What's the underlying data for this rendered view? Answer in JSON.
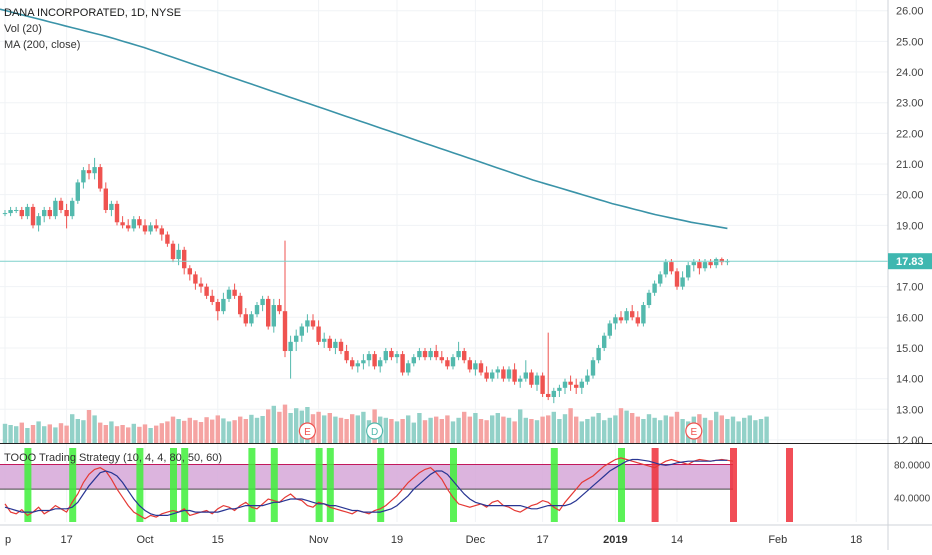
{
  "header": {
    "title": "DANA INCORPORATED, 1D, NYSE",
    "volume_label": "Vol (20)",
    "ma_label": "MA (200, close)",
    "oscillator_label": "TOOO Trading Strategy (10, 4, 4, 80, 50, 60)",
    "last_price": "17.83"
  },
  "colors": {
    "up": "#53b9ad",
    "down": "#ef5350",
    "vol_up": "#92d1c8",
    "vol_down": "#f5a3a2",
    "ma": "#3a93a8",
    "price_line": "#7fd1cc",
    "price_badge": "#3fb7b0",
    "band": "#d6a7d8",
    "band_line": "#c2185b",
    "stoch_k": "#e53935",
    "stoch_d": "#283593",
    "signal_buy": "#3ef03a",
    "signal_sell": "#ef2f3a",
    "earnings_marker": "#ef5350",
    "dividend_marker": "#53b9ad"
  },
  "chart_data": {
    "type": "candlestick",
    "title": "DANA INCORPORATED, 1D, NYSE",
    "price_axis": {
      "ylim": [
        11.9,
        26.35
      ],
      "ticks": [
        "26.00",
        "25.00",
        "24.00",
        "23.00",
        "22.00",
        "21.00",
        "20.00",
        "19.00",
        "17.00",
        "16.00",
        "15.00",
        "14.00",
        "13.00",
        "12.00"
      ],
      "current_price": 17.83
    },
    "time_axis": {
      "index_range": [
        0,
        148
      ],
      "ticks": [
        {
          "index": 0,
          "label": "p"
        },
        {
          "index": 11,
          "label": "17"
        },
        {
          "index": 25,
          "label": "Oct"
        },
        {
          "index": 38,
          "label": "15"
        },
        {
          "index": 56,
          "label": "Nov"
        },
        {
          "index": 70,
          "label": "19"
        },
        {
          "index": 84,
          "label": "Dec"
        },
        {
          "index": 96,
          "label": "17"
        },
        {
          "index": 109,
          "label": "2019"
        },
        {
          "index": 120,
          "label": "14"
        },
        {
          "index": 138,
          "label": "Feb"
        },
        {
          "index": 152,
          "label": "18"
        }
      ]
    },
    "ohlc": [
      [
        19.4,
        19.5,
        19.3,
        19.4
      ],
      [
        19.4,
        19.6,
        19.3,
        19.5
      ],
      [
        19.5,
        19.6,
        19.4,
        19.5
      ],
      [
        19.5,
        19.6,
        19.2,
        19.3
      ],
      [
        19.3,
        19.7,
        19.2,
        19.6
      ],
      [
        19.6,
        19.7,
        18.9,
        19.0
      ],
      [
        19.0,
        19.4,
        18.8,
        19.3
      ],
      [
        19.3,
        19.6,
        19.1,
        19.5
      ],
      [
        19.5,
        19.6,
        19.2,
        19.3
      ],
      [
        19.3,
        19.9,
        19.2,
        19.8
      ],
      [
        19.8,
        19.9,
        19.4,
        19.5
      ],
      [
        19.5,
        19.7,
        18.9,
        19.3
      ],
      [
        19.3,
        19.9,
        19.2,
        19.8
      ],
      [
        19.8,
        20.5,
        19.7,
        20.4
      ],
      [
        20.4,
        20.9,
        20.2,
        20.8
      ],
      [
        20.8,
        21.0,
        20.5,
        20.7
      ],
      [
        20.7,
        21.2,
        20.5,
        20.9
      ],
      [
        20.9,
        21.0,
        20.1,
        20.2
      ],
      [
        20.2,
        20.4,
        19.4,
        19.5
      ],
      [
        19.5,
        19.8,
        19.3,
        19.7
      ],
      [
        19.7,
        19.8,
        19.0,
        19.1
      ],
      [
        19.1,
        19.3,
        18.9,
        19.0
      ],
      [
        19.0,
        19.2,
        18.8,
        18.9
      ],
      [
        18.9,
        19.3,
        18.8,
        19.2
      ],
      [
        19.2,
        19.3,
        18.9,
        19.0
      ],
      [
        19.0,
        19.2,
        18.7,
        18.8
      ],
      [
        18.8,
        19.1,
        18.7,
        19.0
      ],
      [
        19.0,
        19.2,
        18.8,
        18.9
      ],
      [
        18.9,
        19.0,
        18.5,
        18.7
      ],
      [
        18.7,
        18.8,
        18.3,
        18.4
      ],
      [
        18.4,
        18.5,
        17.8,
        17.9
      ],
      [
        17.9,
        18.4,
        17.7,
        18.2
      ],
      [
        18.2,
        18.3,
        17.4,
        17.6
      ],
      [
        17.6,
        17.7,
        17.2,
        17.4
      ],
      [
        17.4,
        17.5,
        16.9,
        17.1
      ],
      [
        17.1,
        17.3,
        16.8,
        17.0
      ],
      [
        17.0,
        17.1,
        16.6,
        16.7
      ],
      [
        16.7,
        16.9,
        16.4,
        16.5
      ],
      [
        16.5,
        16.6,
        15.9,
        16.2
      ],
      [
        16.2,
        16.8,
        16.1,
        16.6
      ],
      [
        16.6,
        17.0,
        16.5,
        16.9
      ],
      [
        16.9,
        17.1,
        16.6,
        16.7
      ],
      [
        16.7,
        16.8,
        16.0,
        16.1
      ],
      [
        16.1,
        16.3,
        15.7,
        15.8
      ],
      [
        15.8,
        16.2,
        15.7,
        16.1
      ],
      [
        16.1,
        16.5,
        16.0,
        16.4
      ],
      [
        16.4,
        16.7,
        16.2,
        16.6
      ],
      [
        16.6,
        16.7,
        15.6,
        15.7
      ],
      [
        15.7,
        16.6,
        15.5,
        16.4
      ],
      [
        16.4,
        16.6,
        16.1,
        16.2
      ],
      [
        16.2,
        18.5,
        14.7,
        14.9
      ],
      [
        14.9,
        15.4,
        14.0,
        15.2
      ],
      [
        15.2,
        15.6,
        14.9,
        15.4
      ],
      [
        15.4,
        15.8,
        15.2,
        15.7
      ],
      [
        15.7,
        16.1,
        15.5,
        15.9
      ],
      [
        15.9,
        16.1,
        15.6,
        15.7
      ],
      [
        15.7,
        15.9,
        15.1,
        15.2
      ],
      [
        15.2,
        15.5,
        15.0,
        15.3
      ],
      [
        15.3,
        15.4,
        14.9,
        15.0
      ],
      [
        15.0,
        15.3,
        14.8,
        15.2
      ],
      [
        15.2,
        15.3,
        14.8,
        14.9
      ],
      [
        14.9,
        15.1,
        14.5,
        14.6
      ],
      [
        14.6,
        14.7,
        14.3,
        14.4
      ],
      [
        14.4,
        14.6,
        14.2,
        14.5
      ],
      [
        14.5,
        14.8,
        14.3,
        14.6
      ],
      [
        14.6,
        14.9,
        14.4,
        14.8
      ],
      [
        14.8,
        14.9,
        14.3,
        14.4
      ],
      [
        14.4,
        14.7,
        14.2,
        14.6
      ],
      [
        14.6,
        15.0,
        14.5,
        14.9
      ],
      [
        14.9,
        15.0,
        14.6,
        14.7
      ],
      [
        14.7,
        14.9,
        14.5,
        14.8
      ],
      [
        14.8,
        14.9,
        14.1,
        14.2
      ],
      [
        14.2,
        14.6,
        14.1,
        14.5
      ],
      [
        14.5,
        14.8,
        14.4,
        14.7
      ],
      [
        14.7,
        15.0,
        14.6,
        14.9
      ],
      [
        14.9,
        15.0,
        14.6,
        14.7
      ],
      [
        14.7,
        15.0,
        14.6,
        14.9
      ],
      [
        14.9,
        15.1,
        14.6,
        14.7
      ],
      [
        14.7,
        14.9,
        14.5,
        14.6
      ],
      [
        14.6,
        14.7,
        14.3,
        14.4
      ],
      [
        14.4,
        14.8,
        14.3,
        14.7
      ],
      [
        14.7,
        15.2,
        14.6,
        14.9
      ],
      [
        14.9,
        15.0,
        14.5,
        14.6
      ],
      [
        14.6,
        14.7,
        14.2,
        14.3
      ],
      [
        14.3,
        14.6,
        14.1,
        14.5
      ],
      [
        14.5,
        14.6,
        14.1,
        14.2
      ],
      [
        14.2,
        14.4,
        13.9,
        14.0
      ],
      [
        14.0,
        14.3,
        13.9,
        14.2
      ],
      [
        14.2,
        14.4,
        14.0,
        14.3
      ],
      [
        14.3,
        14.4,
        13.9,
        14.0
      ],
      [
        14.0,
        14.4,
        13.9,
        14.3
      ],
      [
        14.3,
        14.5,
        13.8,
        13.9
      ],
      [
        13.9,
        14.1,
        13.7,
        14.0
      ],
      [
        14.0,
        14.6,
        13.9,
        14.2
      ],
      [
        14.2,
        14.3,
        13.7,
        13.8
      ],
      [
        13.8,
        14.2,
        13.6,
        14.1
      ],
      [
        14.1,
        14.2,
        13.4,
        13.5
      ],
      [
        13.5,
        15.5,
        13.3,
        13.4
      ],
      [
        13.4,
        13.7,
        13.2,
        13.6
      ],
      [
        13.6,
        13.8,
        13.4,
        13.7
      ],
      [
        13.7,
        14.0,
        13.5,
        13.9
      ],
      [
        13.9,
        14.1,
        13.6,
        13.8
      ],
      [
        13.8,
        14.0,
        13.5,
        13.7
      ],
      [
        13.7,
        14.0,
        13.5,
        13.9
      ],
      [
        13.9,
        14.3,
        13.8,
        14.1
      ],
      [
        14.1,
        14.7,
        14.0,
        14.6
      ],
      [
        14.6,
        15.1,
        14.5,
        15.0
      ],
      [
        15.0,
        15.5,
        14.9,
        15.4
      ],
      [
        15.4,
        15.9,
        15.3,
        15.8
      ],
      [
        15.8,
        16.1,
        15.6,
        16.0
      ],
      [
        16.0,
        16.2,
        15.8,
        15.9
      ],
      [
        15.9,
        16.3,
        15.8,
        16.2
      ],
      [
        16.2,
        16.4,
        15.9,
        16.0
      ],
      [
        16.0,
        16.2,
        15.7,
        15.8
      ],
      [
        15.8,
        16.5,
        15.7,
        16.4
      ],
      [
        16.4,
        16.9,
        16.3,
        16.8
      ],
      [
        16.8,
        17.2,
        16.7,
        17.1
      ],
      [
        17.1,
        17.5,
        17.0,
        17.4
      ],
      [
        17.4,
        17.9,
        17.3,
        17.8
      ],
      [
        17.8,
        17.9,
        17.4,
        17.5
      ],
      [
        17.5,
        17.6,
        16.9,
        17.0
      ],
      [
        17.0,
        17.5,
        16.9,
        17.3
      ],
      [
        17.3,
        17.8,
        17.2,
        17.7
      ],
      [
        17.7,
        17.9,
        17.5,
        17.8
      ],
      [
        17.8,
        17.9,
        17.4,
        17.6
      ],
      [
        17.6,
        17.9,
        17.5,
        17.8
      ],
      [
        17.8,
        17.9,
        17.6,
        17.7
      ],
      [
        17.7,
        17.95,
        17.6,
        17.9
      ],
      [
        17.9,
        17.95,
        17.7,
        17.8
      ],
      [
        17.8,
        17.9,
        17.7,
        17.83
      ]
    ],
    "volume": {
      "ylim": [
        0,
        100
      ],
      "values": [
        32,
        30,
        28,
        34,
        25,
        30,
        36,
        28,
        31,
        26,
        33,
        29,
        48,
        40,
        38,
        55,
        46,
        34,
        30,
        36,
        28,
        30,
        26,
        32,
        27,
        31,
        25,
        29,
        33,
        36,
        44,
        40,
        37,
        42,
        38,
        35,
        43,
        39,
        46,
        41,
        36,
        38,
        44,
        40,
        47,
        42,
        45,
        56,
        62,
        52,
        64,
        50,
        58,
        54,
        60,
        48,
        52,
        46,
        50,
        44,
        42,
        40,
        48,
        46,
        52,
        38,
        56,
        44,
        42,
        40,
        36,
        40,
        46,
        34,
        50,
        38,
        42,
        44,
        40,
        46,
        36,
        42,
        52,
        44,
        50,
        40,
        38,
        46,
        50,
        44,
        42,
        36,
        56,
        42,
        40,
        38,
        44,
        46,
        52,
        40,
        48,
        58,
        44,
        36,
        40,
        44,
        50,
        38,
        42,
        46,
        58,
        54,
        50,
        44,
        40,
        48,
        42,
        38,
        46,
        44,
        52,
        40,
        36,
        44,
        48,
        42,
        38,
        52,
        46,
        40,
        44,
        36,
        42,
        46,
        38,
        40,
        44
      ]
    },
    "moving_average": {
      "name": "MA (200, close)",
      "values": [
        26.05,
        25.99,
        25.93,
        25.87,
        25.81,
        25.75,
        25.69,
        25.63,
        25.57,
        25.51,
        25.45,
        25.39,
        25.33,
        25.27,
        25.21,
        25.15,
        25.08,
        25.01,
        24.94,
        24.87,
        24.8,
        24.72,
        24.64,
        24.56,
        24.48,
        24.4,
        24.32,
        24.24,
        24.16,
        24.08,
        24.0,
        23.92,
        23.84,
        23.76,
        23.68,
        23.6,
        23.52,
        23.44,
        23.36,
        23.28,
        23.2,
        23.12,
        23.04,
        22.96,
        22.88,
        22.8,
        22.72,
        22.64,
        22.56,
        22.48,
        22.4,
        22.32,
        22.24,
        22.16,
        22.08,
        22.0,
        21.92,
        21.84,
        21.76,
        21.68,
        21.6,
        21.52,
        21.44,
        21.36,
        21.28,
        21.2,
        21.12,
        21.04,
        20.96,
        20.88,
        20.8,
        20.72,
        20.64,
        20.56,
        20.48,
        20.41,
        20.34,
        20.27,
        20.2,
        20.13,
        20.06,
        19.99,
        19.92,
        19.85,
        19.78,
        19.71,
        19.65,
        19.59,
        19.53,
        19.47,
        19.41,
        19.35,
        19.3,
        19.25,
        19.2,
        19.15,
        19.1,
        19.06,
        19.02,
        18.98,
        18.94,
        18.9
      ]
    },
    "earnings_markers": [
      {
        "index": 54,
        "label": "E"
      },
      {
        "index": 123,
        "label": "E"
      }
    ],
    "dividend_markers": [
      {
        "index": 66,
        "label": "D"
      }
    ],
    "oscillator": {
      "name": "TOOO Trading Strategy (10, 4, 4, 80, 50, 60)",
      "ylim": [
        10,
        100
      ],
      "ticks": [
        "80.0000",
        "40.0000"
      ],
      "upper_band": 80,
      "lower_band": 50,
      "k_values": [
        32,
        22,
        20,
        25,
        18,
        22,
        28,
        20,
        24,
        30,
        26,
        22,
        34,
        44,
        58,
        68,
        74,
        76,
        72,
        62,
        50,
        40,
        30,
        22,
        18,
        14,
        18,
        16,
        20,
        22,
        24,
        22,
        26,
        18,
        20,
        22,
        24,
        20,
        26,
        30,
        28,
        24,
        30,
        34,
        28,
        26,
        32,
        38,
        36,
        34,
        40,
        44,
        38,
        36,
        30,
        28,
        34,
        32,
        28,
        26,
        24,
        22,
        20,
        24,
        22,
        20,
        24,
        26,
        30,
        36,
        42,
        50,
        58,
        64,
        70,
        74,
        76,
        70,
        62,
        50,
        40,
        32,
        30,
        28,
        30,
        32,
        28,
        34,
        36,
        30,
        28,
        24,
        22,
        26,
        30,
        32,
        36,
        34,
        28,
        24,
        34,
        42,
        50,
        58,
        62,
        66,
        72,
        78,
        82,
        86,
        88,
        86,
        84,
        82,
        80,
        78,
        76,
        80,
        84,
        86,
        84,
        82,
        80,
        84,
        86,
        85,
        84,
        85,
        86,
        85,
        84
      ]
    },
    "oscillator_d": {
      "values": [
        28,
        26,
        24,
        22,
        22,
        22,
        24,
        24,
        24,
        26,
        26,
        26,
        28,
        34,
        44,
        54,
        62,
        70,
        72,
        70,
        66,
        58,
        48,
        38,
        30,
        24,
        20,
        18,
        18,
        18,
        20,
        22,
        24,
        24,
        22,
        22,
        22,
        22,
        22,
        24,
        26,
        26,
        28,
        30,
        30,
        30,
        30,
        32,
        34,
        34,
        36,
        38,
        38,
        38,
        36,
        34,
        32,
        32,
        30,
        30,
        28,
        26,
        24,
        24,
        22,
        22,
        22,
        22,
        24,
        26,
        30,
        36,
        42,
        50,
        56,
        62,
        68,
        72,
        72,
        68,
        60,
        52,
        44,
        38,
        34,
        32,
        30,
        30,
        30,
        30,
        30,
        30,
        30,
        28,
        26,
        26,
        28,
        30,
        30,
        30,
        30,
        32,
        36,
        42,
        48,
        54,
        60,
        66,
        72,
        76,
        80,
        84,
        86,
        86,
        85,
        84,
        82,
        80,
        79,
        80,
        82,
        83,
        84,
        84,
        84,
        84,
        84,
        85,
        85,
        85
      ]
    },
    "buy_signals": [
      4,
      12,
      24,
      30,
      32,
      44,
      48,
      56,
      58,
      67,
      80,
      98,
      110
    ],
    "sell_signals": [
      116,
      130,
      140
    ]
  }
}
